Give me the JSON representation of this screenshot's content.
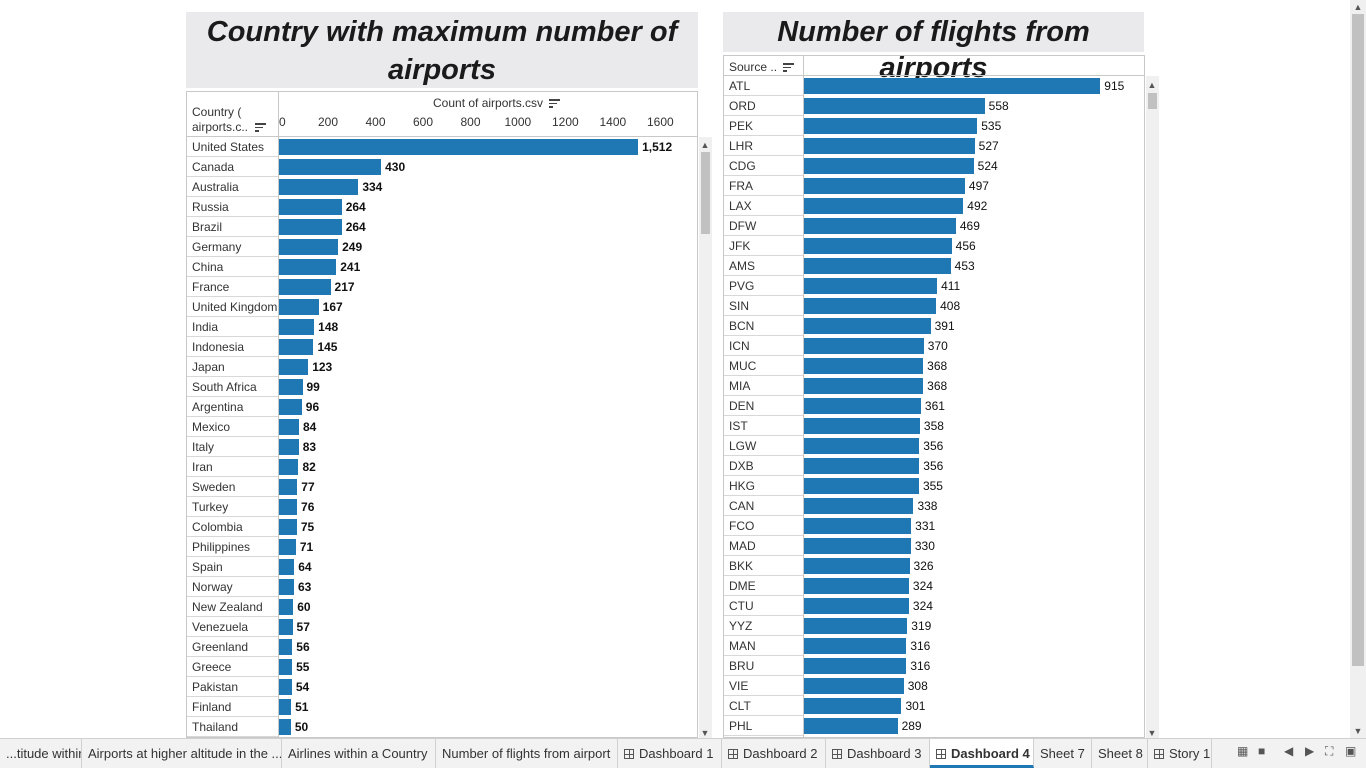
{
  "left_chart": {
    "title": "Country with maximum number of airports",
    "title_line1": "Country with maximum number of",
    "title_line2": "airports",
    "row_header": "Country (\nairports.c..",
    "row_header_line1": "Country (",
    "row_header_line2": "airports.c..",
    "col_header": "Count of airports.csv",
    "tick_labels": [
      "0",
      "200",
      "400",
      "600",
      "800",
      "1000",
      "1200",
      "1400",
      "1600"
    ]
  },
  "right_chart": {
    "title": "Number of flights from airports",
    "row_header": "Source .."
  },
  "tabs": [
    {
      "label": "...titude within...",
      "icon": ""
    },
    {
      "label": "Airports at higher altitude in the ...",
      "icon": ""
    },
    {
      "label": "Airlines within a Country",
      "icon": ""
    },
    {
      "label": "Number of flights from airport",
      "icon": ""
    },
    {
      "label": "Dashboard 1",
      "icon": "dashboard-icon"
    },
    {
      "label": "Dashboard 2",
      "icon": "dashboard-icon"
    },
    {
      "label": "Dashboard 3",
      "icon": "dashboard-icon"
    },
    {
      "label": "Dashboard 4",
      "icon": "dashboard-icon",
      "active": true
    },
    {
      "label": "Sheet 7",
      "icon": ""
    },
    {
      "label": "Sheet 8",
      "icon": ""
    },
    {
      "label": "Story 1",
      "icon": "story-icon"
    }
  ],
  "chart_data": [
    {
      "type": "bar",
      "orientation": "horizontal",
      "title": "Country with maximum number of airports",
      "xlabel": "Count of airports.csv",
      "ylabel": "Country ( airports.c..",
      "xlim": [
        0,
        1700
      ],
      "grid": false,
      "categories": [
        "United States",
        "Canada",
        "Australia",
        "Russia",
        "Brazil",
        "Germany",
        "China",
        "France",
        "United Kingdom",
        "India",
        "Indonesia",
        "Japan",
        "South Africa",
        "Argentina",
        "Mexico",
        "Italy",
        "Iran",
        "Sweden",
        "Turkey",
        "Colombia",
        "Philippines",
        "Spain",
        "Norway",
        "New Zealand",
        "Venezuela",
        "Greenland",
        "Greece",
        "Pakistan",
        "Finland",
        "Thailand"
      ],
      "values": [
        1512,
        430,
        334,
        264,
        264,
        249,
        241,
        217,
        167,
        148,
        145,
        123,
        99,
        96,
        84,
        83,
        82,
        77,
        76,
        75,
        71,
        64,
        63,
        60,
        57,
        56,
        55,
        54,
        51,
        50
      ],
      "value_labels": [
        "1,512",
        "430",
        "334",
        "264",
        "264",
        "249",
        "241",
        "217",
        "167",
        "148",
        "145",
        "123",
        "99",
        "96",
        "84",
        "83",
        "82",
        "77",
        "76",
        "75",
        "71",
        "64",
        "63",
        "60",
        "57",
        "56",
        "55",
        "54",
        "51",
        "50"
      ]
    },
    {
      "type": "bar",
      "orientation": "horizontal",
      "title": "Number of flights from airports",
      "ylabel": "Source ..",
      "grid": false,
      "categories": [
        "ATL",
        "ORD",
        "PEK",
        "LHR",
        "CDG",
        "FRA",
        "LAX",
        "DFW",
        "JFK",
        "AMS",
        "PVG",
        "SIN",
        "BCN",
        "ICN",
        "MUC",
        "MIA",
        "DEN",
        "IST",
        "LGW",
        "DXB",
        "HKG",
        "CAN",
        "FCO",
        "MAD",
        "BKK",
        "DME",
        "CTU",
        "YYZ",
        "MAN",
        "BRU",
        "VIE",
        "CLT",
        "PHL"
      ],
      "values": [
        915,
        558,
        535,
        527,
        524,
        497,
        492,
        469,
        456,
        453,
        411,
        408,
        391,
        370,
        368,
        368,
        361,
        358,
        356,
        356,
        355,
        338,
        331,
        330,
        326,
        324,
        324,
        319,
        316,
        316,
        308,
        301,
        289
      ]
    }
  ],
  "colors": {
    "bar": "#1f77b4",
    "title_bg": "#eaeaec",
    "active_tab_accent": "#1f77b4"
  }
}
